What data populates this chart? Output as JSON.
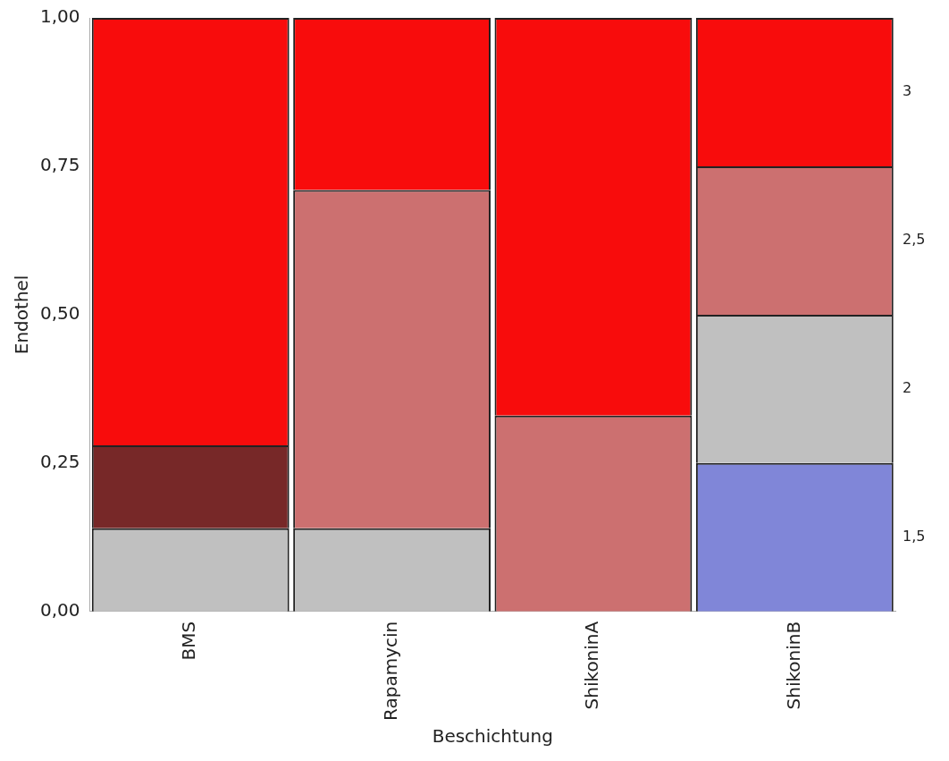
{
  "chart_data": {
    "type": "bar",
    "stacked": true,
    "xlabel": "Beschichtung",
    "ylabel": "Endothel",
    "categories": [
      "BMS",
      "Rapamycin",
      "ShikoninA",
      "ShikoninB"
    ],
    "series": [
      {
        "name": "1,5",
        "color": "#8086d8",
        "values": [
          null,
          null,
          null,
          0.25
        ]
      },
      {
        "name": "2",
        "color": "#c0c0c0",
        "values": [
          0.14,
          0.14,
          null,
          0.25
        ]
      },
      {
        "color": "#772828",
        "values": [
          0.14,
          null,
          null,
          null
        ]
      },
      {
        "name": "2,5",
        "color": "#cc7070",
        "values": [
          null,
          0.57,
          0.33,
          0.25
        ]
      },
      {
        "name": "3",
        "color": "#f80c0c",
        "values": [
          0.72,
          0.29,
          0.67,
          0.25
        ]
      }
    ],
    "ylim": [
      0,
      1
    ],
    "yticks": [
      {
        "value": 0,
        "label": "0,00"
      },
      {
        "value": 0.25,
        "label": "0,25"
      },
      {
        "value": 0.5,
        "label": "0,50"
      },
      {
        "value": 0.75,
        "label": "0,75"
      },
      {
        "value": 1,
        "label": "1,00"
      }
    ],
    "grid": false,
    "legend": false
  }
}
